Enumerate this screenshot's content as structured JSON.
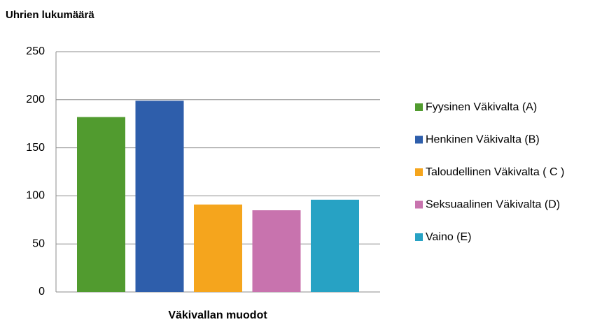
{
  "chart_data": {
    "type": "bar",
    "title": "Uhrien lukumäärä",
    "x_label": "Väkivallan muodot",
    "series": [
      {
        "name": "Fyysinen Väkivalta (A)",
        "color": "#519b2f",
        "values": [
          182
        ]
      },
      {
        "name": "Henkinen Väkivalta (B)",
        "color": "#2e5eab",
        "values": [
          199
        ]
      },
      {
        "name": "Taloudellinen Väkivalta ( C )",
        "color": "#f5a51d",
        "values": [
          91
        ]
      },
      {
        "name": "Seksuaalinen Väkivalta (D)",
        "color": "#c873ae",
        "values": [
          85
        ]
      },
      {
        "name": "Vaino (E)",
        "color": "#27a2c4",
        "values": [
          96
        ]
      }
    ],
    "ylim": [
      0,
      250
    ],
    "yticks": [
      0,
      50,
      100,
      150,
      200,
      250
    ],
    "grid": true,
    "legend": "right"
  }
}
